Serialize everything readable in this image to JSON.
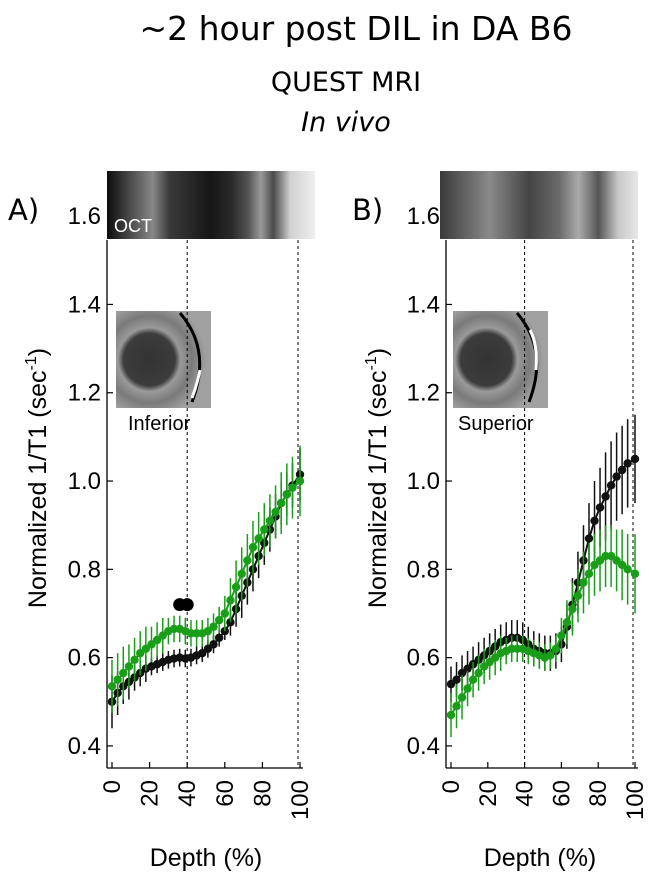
{
  "figure": {
    "title": "~2 hour post DIL in DA B6",
    "subtitle": "QUEST MRI",
    "subtitle2": "In vivo"
  },
  "chart_data": [
    {
      "type": "line",
      "panel_label": "A)",
      "oct_label": "OCT",
      "inset_label": "Inferior",
      "xlabel": "Depth (%)",
      "ylabel": "Normalized 1/T1 (sec",
      "ylabel_sup": "-1",
      "ylabel_end": ")",
      "xlim": [
        0,
        100
      ],
      "ylim": [
        0.35,
        1.7
      ],
      "yticks": [
        0.4,
        0.6,
        0.8,
        1.0,
        1.2,
        1.4,
        1.6
      ],
      "ytick_labels": [
        "0.4",
        "0.6",
        "0.8",
        "1.0",
        "1.2",
        "1.4",
        "1.6"
      ],
      "xticks": [
        0,
        20,
        40,
        60,
        80,
        100
      ],
      "xtick_labels": [
        "0",
        "20",
        "40",
        "60",
        "80",
        "100"
      ],
      "vlines": [
        40,
        100
      ],
      "significance_markers": [
        36,
        40
      ],
      "significance_y": 0.72,
      "series": [
        {
          "color": "#111111",
          "x": [
            0,
            3,
            6,
            9,
            12,
            15,
            18,
            21,
            24,
            27,
            30,
            33,
            36,
            39,
            42,
            45,
            48,
            51,
            54,
            57,
            60,
            63,
            66,
            69,
            72,
            75,
            78,
            81,
            84,
            87,
            90,
            93,
            96,
            100
          ],
          "y": [
            0.5,
            0.52,
            0.535,
            0.545,
            0.555,
            0.565,
            0.575,
            0.58,
            0.585,
            0.59,
            0.595,
            0.598,
            0.6,
            0.598,
            0.6,
            0.605,
            0.61,
            0.62,
            0.63,
            0.645,
            0.66,
            0.68,
            0.71,
            0.74,
            0.77,
            0.8,
            0.83,
            0.86,
            0.89,
            0.92,
            0.95,
            0.97,
            0.99,
            1.015
          ],
          "err": [
            0.06,
            0.05,
            0.04,
            0.04,
            0.03,
            0.03,
            0.03,
            0.02,
            0.02,
            0.02,
            0.02,
            0.02,
            0.02,
            0.02,
            0.02,
            0.02,
            0.02,
            0.02,
            0.02,
            0.02,
            0.02,
            0.03,
            0.04,
            0.05,
            0.05,
            0.05,
            0.05,
            0.05,
            0.05,
            0.05,
            0.05,
            0.05,
            0.05,
            0.06
          ]
        },
        {
          "color": "#1a9e1a",
          "x": [
            0,
            3,
            6,
            9,
            12,
            15,
            18,
            21,
            24,
            27,
            30,
            33,
            36,
            39,
            42,
            45,
            48,
            51,
            54,
            57,
            60,
            63,
            66,
            69,
            72,
            75,
            78,
            81,
            84,
            87,
            90,
            93,
            96,
            100
          ],
          "y": [
            0.535,
            0.55,
            0.565,
            0.58,
            0.595,
            0.61,
            0.62,
            0.63,
            0.64,
            0.65,
            0.66,
            0.665,
            0.665,
            0.66,
            0.655,
            0.655,
            0.655,
            0.66,
            0.67,
            0.685,
            0.7,
            0.73,
            0.76,
            0.79,
            0.82,
            0.85,
            0.87,
            0.89,
            0.91,
            0.93,
            0.95,
            0.97,
            0.985,
            1.0
          ],
          "err": [
            0.06,
            0.06,
            0.06,
            0.05,
            0.05,
            0.05,
            0.05,
            0.04,
            0.04,
            0.04,
            0.03,
            0.03,
            0.03,
            0.03,
            0.03,
            0.03,
            0.03,
            0.03,
            0.03,
            0.03,
            0.04,
            0.05,
            0.06,
            0.06,
            0.06,
            0.06,
            0.06,
            0.06,
            0.06,
            0.06,
            0.07,
            0.07,
            0.07,
            0.08
          ]
        }
      ]
    },
    {
      "type": "line",
      "panel_label": "B)",
      "inset_label": "Superior",
      "xlabel": "Depth (%)",
      "ylabel": "Normalized 1/T1 (sec",
      "ylabel_sup": "-1",
      "ylabel_end": ")",
      "xlim": [
        0,
        100
      ],
      "ylim": [
        0.35,
        1.7
      ],
      "yticks": [
        0.4,
        0.6,
        0.8,
        1.0,
        1.2,
        1.4,
        1.6
      ],
      "ytick_labels": [
        "0.4",
        "0.6",
        "0.8",
        "1.0",
        "1.2",
        "1.4",
        "1.6"
      ],
      "xticks": [
        0,
        20,
        40,
        60,
        80,
        100
      ],
      "xtick_labels": [
        "0",
        "20",
        "40",
        "60",
        "80",
        "100"
      ],
      "vlines": [
        40,
        100
      ],
      "series": [
        {
          "color": "#111111",
          "x": [
            0,
            3,
            6,
            9,
            12,
            15,
            18,
            21,
            24,
            27,
            30,
            33,
            36,
            39,
            42,
            45,
            48,
            51,
            54,
            57,
            60,
            63,
            66,
            69,
            72,
            75,
            78,
            81,
            84,
            87,
            90,
            93,
            96,
            100
          ],
          "y": [
            0.54,
            0.55,
            0.565,
            0.575,
            0.585,
            0.595,
            0.605,
            0.615,
            0.625,
            0.635,
            0.64,
            0.645,
            0.645,
            0.64,
            0.63,
            0.62,
            0.615,
            0.61,
            0.61,
            0.615,
            0.63,
            0.67,
            0.72,
            0.77,
            0.82,
            0.87,
            0.91,
            0.94,
            0.965,
            0.99,
            1.01,
            1.025,
            1.04,
            1.05
          ],
          "err": [
            0.04,
            0.04,
            0.04,
            0.04,
            0.04,
            0.04,
            0.04,
            0.04,
            0.04,
            0.04,
            0.04,
            0.04,
            0.04,
            0.04,
            0.04,
            0.04,
            0.04,
            0.04,
            0.04,
            0.04,
            0.04,
            0.05,
            0.06,
            0.07,
            0.08,
            0.08,
            0.09,
            0.09,
            0.1,
            0.1,
            0.1,
            0.1,
            0.1,
            0.1
          ]
        },
        {
          "color": "#1a9e1a",
          "x": [
            0,
            3,
            6,
            9,
            12,
            15,
            18,
            21,
            24,
            27,
            30,
            33,
            36,
            39,
            42,
            45,
            48,
            51,
            54,
            57,
            60,
            63,
            66,
            69,
            72,
            75,
            78,
            81,
            84,
            87,
            90,
            93,
            96,
            100
          ],
          "y": [
            0.47,
            0.49,
            0.51,
            0.53,
            0.55,
            0.565,
            0.58,
            0.59,
            0.6,
            0.61,
            0.615,
            0.62,
            0.62,
            0.62,
            0.615,
            0.61,
            0.605,
            0.6,
            0.605,
            0.62,
            0.65,
            0.68,
            0.71,
            0.74,
            0.77,
            0.79,
            0.81,
            0.82,
            0.83,
            0.83,
            0.82,
            0.81,
            0.8,
            0.79
          ],
          "err": [
            0.05,
            0.05,
            0.05,
            0.04,
            0.04,
            0.04,
            0.04,
            0.04,
            0.04,
            0.04,
            0.03,
            0.03,
            0.03,
            0.03,
            0.03,
            0.03,
            0.03,
            0.03,
            0.03,
            0.03,
            0.04,
            0.05,
            0.06,
            0.06,
            0.07,
            0.07,
            0.07,
            0.07,
            0.07,
            0.07,
            0.07,
            0.08,
            0.08,
            0.09
          ]
        }
      ]
    }
  ]
}
